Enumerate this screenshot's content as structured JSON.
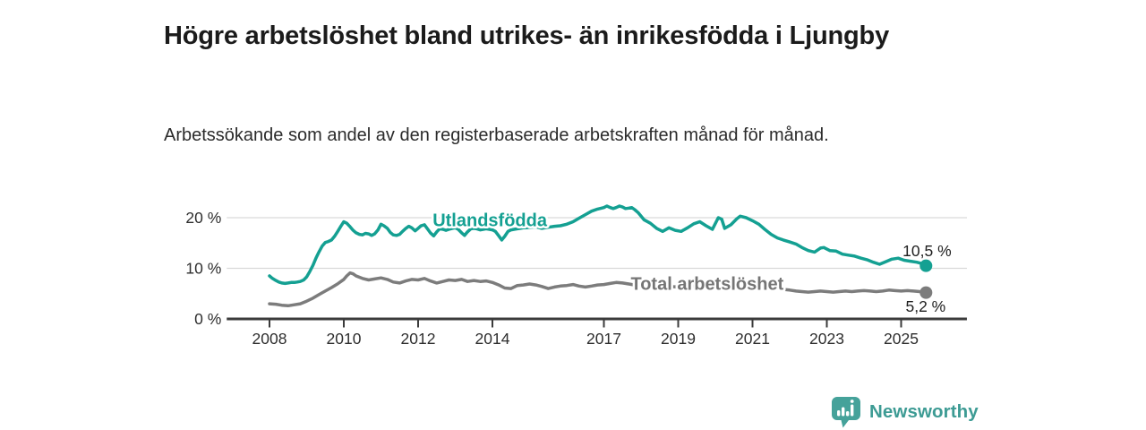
{
  "header": {
    "title": "Högre arbetslöshet bland utrikes- än inrikesfödda i Ljungby",
    "subtitle": "Arbetssökande som andel av den registerbaserade arbetskraften månad för månad."
  },
  "footer": {
    "brand_name": "Newsworthy",
    "logo_icon": "newsworthy-bar-chart-speech-bubble-icon",
    "brand_color": "#3d9b94"
  },
  "colors": {
    "background": "#ffffff",
    "axis": "#3b3b3b",
    "grid": "#d9d9d9",
    "tick_text": "#2e2e2e",
    "end_label_text": "#1f1f1f"
  },
  "chart_data": {
    "type": "line",
    "title": "Högre arbetslöshet bland utrikes- än inrikesfödda i Ljungby",
    "subtitle": "Arbetssökande som andel av den registerbaserade arbetskraften månad för månad.",
    "unit": "%",
    "grid": "horizontal-only",
    "legend_position": "inline-labels",
    "x_axis": {
      "range": [
        2006.85,
        2026.77
      ],
      "tick_values": [
        2008,
        2010,
        2012,
        2014,
        2017,
        2019,
        2021,
        2023,
        2025
      ],
      "tick_labels": [
        "2008",
        "2010",
        "2012",
        "2014",
        "2017",
        "2019",
        "2021",
        "2023",
        "2025"
      ]
    },
    "y_axis": {
      "range": [
        0,
        24
      ],
      "tick_values": [
        0,
        10,
        20
      ],
      "tick_labels": [
        "0 %",
        "10 %",
        "20 %"
      ]
    },
    "series": [
      {
        "name": "Utlandsfödda",
        "color": "#14a092",
        "line_width": 3.5,
        "end_value": 10.5,
        "end_dot": true,
        "inline_label": {
          "text": "Utlandsfödda",
          "x": 2013.93,
          "y": 19.6
        },
        "end_label": {
          "text": "10,5 %",
          "x": 2025.04,
          "y": 12.4
        },
        "points": [
          [
            2008.0,
            8.5
          ],
          [
            2008.08,
            8.0
          ],
          [
            2008.17,
            7.6
          ],
          [
            2008.25,
            7.3
          ],
          [
            2008.33,
            7.1
          ],
          [
            2008.42,
            7.0
          ],
          [
            2008.5,
            7.1
          ],
          [
            2008.58,
            7.2
          ],
          [
            2008.67,
            7.2
          ],
          [
            2008.75,
            7.3
          ],
          [
            2008.83,
            7.4
          ],
          [
            2008.92,
            7.7
          ],
          [
            2009.0,
            8.3
          ],
          [
            2009.08,
            9.3
          ],
          [
            2009.17,
            10.6
          ],
          [
            2009.25,
            12.0
          ],
          [
            2009.33,
            13.2
          ],
          [
            2009.42,
            14.4
          ],
          [
            2009.5,
            15.1
          ],
          [
            2009.58,
            15.3
          ],
          [
            2009.67,
            15.6
          ],
          [
            2009.75,
            16.3
          ],
          [
            2009.83,
            17.2
          ],
          [
            2009.92,
            18.3
          ],
          [
            2010.0,
            19.2
          ],
          [
            2010.08,
            18.9
          ],
          [
            2010.17,
            18.2
          ],
          [
            2010.25,
            17.5
          ],
          [
            2010.33,
            17.0
          ],
          [
            2010.42,
            16.7
          ],
          [
            2010.5,
            16.6
          ],
          [
            2010.58,
            16.9
          ],
          [
            2010.67,
            16.8
          ],
          [
            2010.75,
            16.5
          ],
          [
            2010.83,
            16.8
          ],
          [
            2010.92,
            17.6
          ],
          [
            2011.0,
            18.7
          ],
          [
            2011.08,
            18.4
          ],
          [
            2011.17,
            17.9
          ],
          [
            2011.25,
            17.1
          ],
          [
            2011.33,
            16.6
          ],
          [
            2011.42,
            16.5
          ],
          [
            2011.5,
            16.7
          ],
          [
            2011.58,
            17.3
          ],
          [
            2011.67,
            17.9
          ],
          [
            2011.75,
            18.3
          ],
          [
            2011.83,
            18.0
          ],
          [
            2011.92,
            17.4
          ],
          [
            2012.0,
            17.9
          ],
          [
            2012.08,
            18.4
          ],
          [
            2012.17,
            18.6
          ],
          [
            2012.25,
            17.8
          ],
          [
            2012.33,
            17.0
          ],
          [
            2012.42,
            16.4
          ],
          [
            2012.5,
            17.2
          ],
          [
            2012.58,
            17.8
          ],
          [
            2012.67,
            17.7
          ],
          [
            2012.75,
            17.5
          ],
          [
            2012.83,
            17.7
          ],
          [
            2012.92,
            17.9
          ],
          [
            2013.0,
            18.0
          ],
          [
            2013.08,
            17.7
          ],
          [
            2013.17,
            17.0
          ],
          [
            2013.25,
            16.5
          ],
          [
            2013.33,
            17.2
          ],
          [
            2013.42,
            17.8
          ],
          [
            2013.5,
            17.9
          ],
          [
            2013.58,
            17.8
          ],
          [
            2013.67,
            17.6
          ],
          [
            2013.75,
            17.7
          ],
          [
            2013.83,
            17.8
          ],
          [
            2013.92,
            17.7
          ],
          [
            2014.0,
            17.6
          ],
          [
            2014.08,
            17.3
          ],
          [
            2014.17,
            16.4
          ],
          [
            2014.25,
            15.6
          ],
          [
            2014.33,
            16.3
          ],
          [
            2014.42,
            17.3
          ],
          [
            2014.5,
            17.6
          ],
          [
            2014.58,
            17.7
          ],
          [
            2014.67,
            17.8
          ],
          [
            2014.75,
            17.9
          ],
          [
            2014.83,
            18.0
          ],
          [
            2014.92,
            18.0
          ],
          [
            2015.0,
            18.1
          ],
          [
            2015.17,
            18.2
          ],
          [
            2015.33,
            17.9
          ],
          [
            2015.5,
            18.1
          ],
          [
            2015.67,
            18.3
          ],
          [
            2015.83,
            18.4
          ],
          [
            2016.0,
            18.7
          ],
          [
            2016.17,
            19.2
          ],
          [
            2016.33,
            19.9
          ],
          [
            2016.5,
            20.6
          ],
          [
            2016.67,
            21.3
          ],
          [
            2016.83,
            21.7
          ],
          [
            2017.0,
            22.0
          ],
          [
            2017.08,
            22.3
          ],
          [
            2017.17,
            22.0
          ],
          [
            2017.25,
            21.8
          ],
          [
            2017.33,
            22.0
          ],
          [
            2017.42,
            22.3
          ],
          [
            2017.5,
            22.1
          ],
          [
            2017.58,
            21.8
          ],
          [
            2017.67,
            21.9
          ],
          [
            2017.75,
            22.0
          ],
          [
            2017.83,
            21.6
          ],
          [
            2017.92,
            21.0
          ],
          [
            2018.08,
            19.6
          ],
          [
            2018.25,
            18.9
          ],
          [
            2018.42,
            17.9
          ],
          [
            2018.58,
            17.3
          ],
          [
            2018.75,
            18.0
          ],
          [
            2018.92,
            17.5
          ],
          [
            2019.08,
            17.3
          ],
          [
            2019.25,
            18.0
          ],
          [
            2019.42,
            18.8
          ],
          [
            2019.58,
            19.2
          ],
          [
            2019.75,
            18.4
          ],
          [
            2019.92,
            17.7
          ],
          [
            2020.08,
            20.0
          ],
          [
            2020.17,
            19.7
          ],
          [
            2020.25,
            17.9
          ],
          [
            2020.42,
            18.6
          ],
          [
            2020.58,
            19.8
          ],
          [
            2020.67,
            20.3
          ],
          [
            2020.83,
            20.0
          ],
          [
            2021.0,
            19.4
          ],
          [
            2021.17,
            18.7
          ],
          [
            2021.33,
            17.7
          ],
          [
            2021.5,
            16.7
          ],
          [
            2021.67,
            16.0
          ],
          [
            2021.83,
            15.6
          ],
          [
            2022.0,
            15.2
          ],
          [
            2022.17,
            14.8
          ],
          [
            2022.33,
            14.1
          ],
          [
            2022.5,
            13.5
          ],
          [
            2022.67,
            13.2
          ],
          [
            2022.83,
            14.0
          ],
          [
            2022.92,
            14.1
          ],
          [
            2023.08,
            13.5
          ],
          [
            2023.25,
            13.4
          ],
          [
            2023.42,
            12.8
          ],
          [
            2023.58,
            12.6
          ],
          [
            2023.75,
            12.4
          ],
          [
            2023.92,
            12.0
          ],
          [
            2024.08,
            11.7
          ],
          [
            2024.25,
            11.2
          ],
          [
            2024.42,
            10.8
          ],
          [
            2024.58,
            11.3
          ],
          [
            2024.75,
            11.8
          ],
          [
            2024.92,
            12.0
          ],
          [
            2025.08,
            11.6
          ],
          [
            2025.25,
            11.4
          ],
          [
            2025.42,
            11.2
          ],
          [
            2025.58,
            10.9
          ],
          [
            2025.67,
            10.5
          ]
        ]
      },
      {
        "name": "Total arbetslöshet",
        "color": "#7c7c7c",
        "line_width": 3.5,
        "end_value": 5.2,
        "end_dot": true,
        "inline_label": {
          "text": "Total arbetslöshet",
          "x": 2019.78,
          "y": 7.0
        },
        "end_label": {
          "text": "5,2 %",
          "x": 2025.12,
          "y": 1.45
        },
        "points": [
          [
            2008.0,
            3.0
          ],
          [
            2008.17,
            2.9
          ],
          [
            2008.33,
            2.7
          ],
          [
            2008.5,
            2.6
          ],
          [
            2008.67,
            2.8
          ],
          [
            2008.83,
            3.0
          ],
          [
            2009.0,
            3.5
          ],
          [
            2009.17,
            4.1
          ],
          [
            2009.33,
            4.8
          ],
          [
            2009.5,
            5.5
          ],
          [
            2009.67,
            6.2
          ],
          [
            2009.83,
            6.9
          ],
          [
            2010.0,
            7.8
          ],
          [
            2010.08,
            8.5
          ],
          [
            2010.17,
            9.1
          ],
          [
            2010.25,
            8.9
          ],
          [
            2010.33,
            8.5
          ],
          [
            2010.5,
            8.0
          ],
          [
            2010.67,
            7.7
          ],
          [
            2010.83,
            7.9
          ],
          [
            2011.0,
            8.1
          ],
          [
            2011.17,
            7.8
          ],
          [
            2011.33,
            7.3
          ],
          [
            2011.5,
            7.1
          ],
          [
            2011.67,
            7.5
          ],
          [
            2011.83,
            7.8
          ],
          [
            2012.0,
            7.7
          ],
          [
            2012.17,
            8.0
          ],
          [
            2012.33,
            7.5
          ],
          [
            2012.5,
            7.1
          ],
          [
            2012.67,
            7.4
          ],
          [
            2012.83,
            7.7
          ],
          [
            2013.0,
            7.6
          ],
          [
            2013.17,
            7.8
          ],
          [
            2013.33,
            7.4
          ],
          [
            2013.5,
            7.6
          ],
          [
            2013.67,
            7.4
          ],
          [
            2013.83,
            7.5
          ],
          [
            2014.0,
            7.2
          ],
          [
            2014.17,
            6.7
          ],
          [
            2014.33,
            6.1
          ],
          [
            2014.5,
            6.0
          ],
          [
            2014.67,
            6.6
          ],
          [
            2014.83,
            6.7
          ],
          [
            2015.0,
            6.9
          ],
          [
            2015.17,
            6.7
          ],
          [
            2015.33,
            6.4
          ],
          [
            2015.5,
            6.0
          ],
          [
            2015.67,
            6.3
          ],
          [
            2015.83,
            6.5
          ],
          [
            2016.0,
            6.6
          ],
          [
            2016.17,
            6.8
          ],
          [
            2016.33,
            6.5
          ],
          [
            2016.5,
            6.3
          ],
          [
            2016.67,
            6.5
          ],
          [
            2016.83,
            6.7
          ],
          [
            2017.0,
            6.8
          ],
          [
            2017.17,
            7.0
          ],
          [
            2017.33,
            7.2
          ],
          [
            2017.5,
            7.1
          ],
          [
            2017.67,
            6.9
          ],
          [
            2017.83,
            6.7
          ],
          [
            2018.0,
            6.6
          ],
          [
            2018.25,
            6.4
          ],
          [
            2018.5,
            6.3
          ],
          [
            2018.75,
            6.4
          ],
          [
            2019.0,
            6.3
          ],
          [
            2019.25,
            6.4
          ],
          [
            2019.5,
            6.5
          ],
          [
            2019.75,
            6.6
          ],
          [
            2020.0,
            6.8
          ],
          [
            2020.17,
            7.5
          ],
          [
            2020.33,
            7.7
          ],
          [
            2020.5,
            7.5
          ],
          [
            2020.75,
            7.3
          ],
          [
            2021.0,
            7.1
          ],
          [
            2021.25,
            6.7
          ],
          [
            2021.5,
            6.3
          ],
          [
            2021.75,
            5.9
          ],
          [
            2022.0,
            5.7
          ],
          [
            2022.17,
            5.5
          ],
          [
            2022.33,
            5.4
          ],
          [
            2022.5,
            5.3
          ],
          [
            2022.67,
            5.4
          ],
          [
            2022.83,
            5.5
          ],
          [
            2023.0,
            5.4
          ],
          [
            2023.17,
            5.3
          ],
          [
            2023.33,
            5.4
          ],
          [
            2023.5,
            5.5
          ],
          [
            2023.67,
            5.4
          ],
          [
            2023.83,
            5.5
          ],
          [
            2024.0,
            5.6
          ],
          [
            2024.17,
            5.5
          ],
          [
            2024.33,
            5.4
          ],
          [
            2024.5,
            5.5
          ],
          [
            2024.67,
            5.7
          ],
          [
            2024.83,
            5.6
          ],
          [
            2025.0,
            5.5
          ],
          [
            2025.17,
            5.6
          ],
          [
            2025.33,
            5.5
          ],
          [
            2025.5,
            5.4
          ],
          [
            2025.67,
            5.2
          ]
        ]
      }
    ]
  }
}
